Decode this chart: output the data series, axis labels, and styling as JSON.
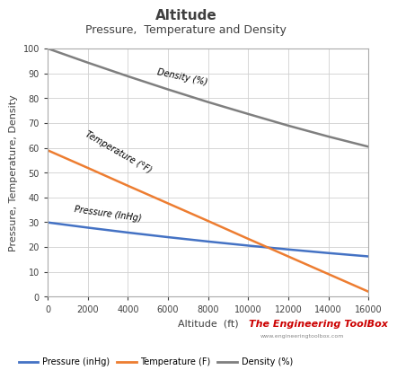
{
  "title": "Altitude",
  "subtitle": "Pressure,  Temperature and Density",
  "xlabel": "Altitude  (ft)",
  "ylabel": "Pressure, Temperature, Density",
  "xlim": [
    0,
    16000
  ],
  "ylim": [
    0,
    100
  ],
  "xticks": [
    0,
    2000,
    4000,
    6000,
    8000,
    10000,
    12000,
    14000,
    16000
  ],
  "yticks": [
    0,
    10,
    20,
    30,
    40,
    50,
    60,
    70,
    80,
    90,
    100
  ],
  "altitude": [
    0,
    2000,
    4000,
    6000,
    8000,
    10000,
    12000,
    14000,
    16000
  ],
  "pressure": [
    29.92,
    27.82,
    25.84,
    23.98,
    22.23,
    20.58,
    19.03,
    17.58,
    16.22
  ],
  "temperature": [
    59.0,
    51.9,
    44.7,
    37.6,
    30.5,
    23.3,
    16.2,
    9.1,
    2.0
  ],
  "density": [
    100.0,
    94.3,
    88.8,
    83.5,
    78.4,
    73.6,
    68.9,
    64.5,
    60.4
  ],
  "pressure_color": "#4472C4",
  "temperature_color": "#ED7D31",
  "density_color": "#7F7F7F",
  "background_color": "#ffffff",
  "grid_color": "#d0d0d0",
  "title_fontsize": 11,
  "subtitle_fontsize": 9,
  "axis_label_fontsize": 8,
  "tick_fontsize": 7,
  "inline_fontsize": 7,
  "legend_fontsize": 7,
  "watermark_text": "The Engineering ToolBox",
  "watermark_color": "#cc0000",
  "watermark_url": "www.engineeringtoolbox.com",
  "label_pressure": "Pressure (InHg)",
  "label_temperature": "Temperature (°F)",
  "label_density": "Density (%)",
  "legend_pressure": "Pressure (inHg)",
  "legend_temperature": "Temperature (F)",
  "legend_density": "Density (%)",
  "title_color": "#404040",
  "subtitle_color": "#404040"
}
